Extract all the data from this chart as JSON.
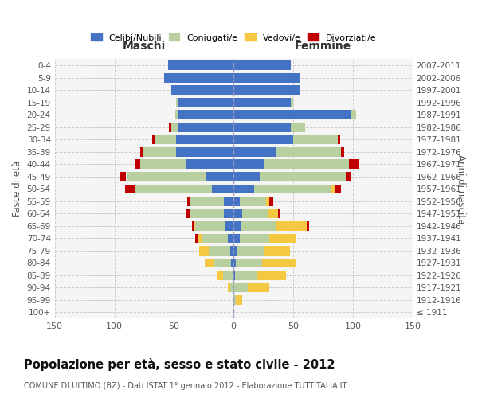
{
  "age_groups": [
    "100+",
    "95-99",
    "90-94",
    "85-89",
    "80-84",
    "75-79",
    "70-74",
    "65-69",
    "60-64",
    "55-59",
    "50-54",
    "45-49",
    "40-44",
    "35-39",
    "30-34",
    "25-29",
    "20-24",
    "15-19",
    "10-14",
    "5-9",
    "0-4"
  ],
  "birth_years": [
    "≤ 1911",
    "1912-1916",
    "1917-1921",
    "1922-1926",
    "1927-1931",
    "1932-1936",
    "1937-1941",
    "1942-1946",
    "1947-1951",
    "1952-1956",
    "1957-1961",
    "1962-1966",
    "1967-1971",
    "1972-1976",
    "1977-1981",
    "1982-1986",
    "1987-1991",
    "1992-1996",
    "1997-2001",
    "2002-2006",
    "2007-2011"
  ],
  "males": {
    "celibi": [
      0,
      0,
      0,
      1,
      2,
      3,
      5,
      7,
      8,
      8,
      18,
      23,
      40,
      48,
      48,
      47,
      47,
      47,
      52,
      58,
      55
    ],
    "coniugati": [
      0,
      0,
      3,
      8,
      14,
      18,
      22,
      25,
      28,
      28,
      65,
      67,
      38,
      28,
      18,
      5,
      2,
      1,
      0,
      0,
      0
    ],
    "vedovi": [
      0,
      0,
      2,
      5,
      8,
      8,
      3,
      1,
      0,
      0,
      0,
      0,
      0,
      0,
      0,
      0,
      0,
      0,
      0,
      0,
      0
    ],
    "divorziati": [
      0,
      0,
      0,
      0,
      0,
      0,
      2,
      2,
      4,
      3,
      8,
      5,
      5,
      2,
      2,
      2,
      0,
      0,
      0,
      0,
      0
    ]
  },
  "females": {
    "nubili": [
      0,
      0,
      0,
      1,
      2,
      3,
      5,
      6,
      7,
      5,
      17,
      22,
      25,
      35,
      50,
      48,
      98,
      48,
      55,
      55,
      48
    ],
    "coniugate": [
      0,
      2,
      12,
      18,
      22,
      22,
      25,
      30,
      22,
      22,
      65,
      72,
      72,
      55,
      37,
      12,
      5,
      2,
      0,
      0,
      0
    ],
    "vedove": [
      0,
      5,
      18,
      25,
      28,
      22,
      22,
      25,
      8,
      3,
      3,
      0,
      0,
      0,
      0,
      0,
      0,
      0,
      0,
      0,
      0
    ],
    "divorziate": [
      0,
      0,
      0,
      0,
      0,
      0,
      0,
      2,
      2,
      3,
      5,
      5,
      8,
      3,
      2,
      0,
      0,
      0,
      0,
      0,
      0
    ]
  },
  "colors": {
    "celibi_nubili": "#4472c4",
    "coniugati_e": "#b8cfa0",
    "vedovi_e": "#f5c842",
    "divorziati_e": "#c00000"
  },
  "xlim": 150,
  "title": "Popolazione per età, sesso e stato civile - 2012",
  "subtitle": "COMUNE DI ULTIMO (BZ) - Dati ISTAT 1° gennaio 2012 - Elaborazione TUTTITALIA.IT",
  "ylabel_left": "Fasce di età",
  "ylabel_right": "Anni di nascita",
  "xlabel_left": "Maschi",
  "xlabel_right": "Femmine",
  "background_color": "#ffffff",
  "grid_color": "#cccccc"
}
